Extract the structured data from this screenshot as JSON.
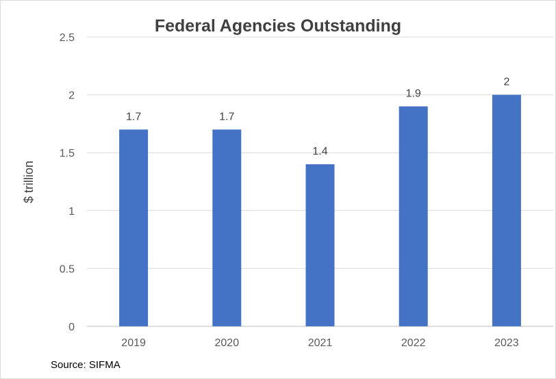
{
  "chart_data": {
    "type": "bar",
    "title": "Federal Agencies Outstanding",
    "ylabel": "$ trillion",
    "xlabel": "",
    "categories": [
      "2019",
      "2020",
      "2021",
      "2022",
      "2023"
    ],
    "values": [
      1.7,
      1.7,
      1.4,
      1.9,
      2
    ],
    "data_labels": [
      "1.7",
      "1.7",
      "1.4",
      "1.9",
      "2"
    ],
    "ylim": [
      0,
      2.5
    ],
    "yticks": [
      0,
      0.5,
      1,
      1.5,
      2,
      2.5
    ],
    "ytick_labels": [
      "0",
      "0.5",
      "1",
      "1.5",
      "2",
      "2.5"
    ],
    "grid": true,
    "legend": "none",
    "colors": {
      "bar": "#4472C4",
      "grid": "#d9d9d9",
      "axis": "#bfbfbf"
    }
  },
  "footer": {
    "source": "Source:  SIFMA"
  }
}
